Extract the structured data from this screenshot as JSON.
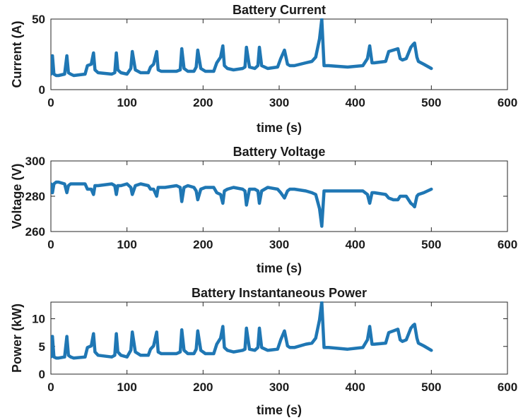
{
  "chart_data": [
    {
      "type": "line",
      "title": "Battery Current",
      "xlabel": "time (s)",
      "ylabel": "Current (A)",
      "xlim": [
        0,
        600
      ],
      "ylim": [
        0,
        50
      ],
      "xticks": [
        "0",
        "100",
        "200",
        "300",
        "400",
        "500",
        "600"
      ],
      "yticks": [
        "0",
        "50"
      ],
      "ytick_values": [
        0,
        50
      ],
      "grid": false,
      "color": "#1f77b4",
      "series": [
        {
          "x": [
            0,
            2,
            4,
            7,
            10,
            18,
            21,
            23,
            26,
            30,
            45,
            48,
            53,
            56,
            58,
            62,
            80,
            84,
            86,
            88,
            92,
            100,
            105,
            107,
            111,
            118,
            128,
            131,
            135,
            139,
            141,
            145,
            150,
            165,
            170,
            172,
            175,
            180,
            188,
            191,
            193,
            197,
            203,
            214,
            218,
            223,
            226,
            228,
            232,
            240,
            252,
            255,
            257,
            261,
            268,
            272,
            274,
            277,
            285,
            298,
            302,
            307,
            311,
            314,
            320,
            335,
            343,
            348,
            353,
            356,
            359,
            365,
            390,
            410,
            416,
            419,
            422,
            425,
            440,
            444,
            450,
            456,
            459,
            462,
            467,
            473,
            476,
            478,
            481,
            483,
            490,
            500
          ],
          "y": [
            11,
            24,
            11,
            10,
            10,
            11,
            24,
            12,
            11,
            10,
            11,
            17,
            18,
            26,
            14,
            12,
            11,
            12,
            26,
            14,
            12,
            11,
            15,
            27,
            14,
            12,
            12,
            16,
            18,
            27,
            14,
            13,
            13,
            13,
            14,
            29,
            15,
            13,
            13,
            16,
            28,
            15,
            13,
            13,
            19,
            23,
            31,
            17,
            15,
            14,
            15,
            16,
            30,
            16,
            15,
            17,
            30,
            17,
            15,
            16,
            22,
            28,
            18,
            17,
            17,
            19,
            20,
            23,
            36,
            50,
            17,
            17,
            16,
            17,
            22,
            31,
            19,
            19,
            20,
            27,
            28,
            29,
            22,
            21,
            22,
            30,
            32,
            33,
            23,
            20,
            18,
            15
          ]
        }
      ]
    },
    {
      "type": "line",
      "title": "Battery Voltage",
      "xlabel": "time (s)",
      "ylabel": "Voltage (V)",
      "xlim": [
        0,
        600
      ],
      "ylim": [
        260,
        300
      ],
      "xticks": [
        "0",
        "100",
        "200",
        "300",
        "400",
        "500",
        "600"
      ],
      "yticks": [
        "260",
        "280",
        "300"
      ],
      "ytick_values": [
        260,
        280,
        300
      ],
      "grid": false,
      "color": "#1f77b4",
      "series": [
        {
          "x": [
            0,
            2,
            4,
            7,
            10,
            18,
            21,
            23,
            26,
            30,
            45,
            48,
            53,
            56,
            58,
            62,
            80,
            84,
            86,
            88,
            92,
            100,
            105,
            107,
            111,
            118,
            128,
            131,
            135,
            139,
            141,
            145,
            150,
            165,
            170,
            172,
            175,
            180,
            188,
            191,
            193,
            197,
            203,
            214,
            218,
            223,
            226,
            228,
            232,
            240,
            252,
            255,
            257,
            261,
            268,
            272,
            274,
            277,
            285,
            298,
            302,
            307,
            311,
            314,
            320,
            335,
            343,
            348,
            353,
            356,
            359,
            365,
            390,
            410,
            416,
            419,
            422,
            425,
            440,
            444,
            450,
            456,
            459,
            462,
            467,
            473,
            476,
            478,
            481,
            483,
            490,
            500
          ],
          "y": [
            287,
            282,
            287,
            288,
            288,
            287,
            282,
            286,
            287,
            287,
            287,
            284,
            284,
            281,
            286,
            286,
            287,
            286,
            281,
            286,
            286,
            287,
            285,
            281,
            286,
            287,
            286,
            284,
            284,
            280,
            285,
            285,
            285,
            286,
            285,
            277,
            285,
            286,
            285,
            283,
            278,
            284,
            285,
            285,
            282,
            281,
            276,
            283,
            284,
            285,
            284,
            283,
            275,
            284,
            284,
            283,
            276,
            283,
            285,
            284,
            282,
            279,
            283,
            284,
            284,
            283,
            282,
            281,
            273,
            263,
            283,
            283,
            283,
            283,
            281,
            276,
            282,
            282,
            281,
            279,
            278,
            278,
            280,
            280,
            280,
            276,
            275,
            274,
            280,
            281,
            282,
            284
          ]
        }
      ]
    },
    {
      "type": "line",
      "title": "Battery Instantaneous Power",
      "xlabel": "time (s)",
      "ylabel": "Power (kW)",
      "xlim": [
        0,
        600
      ],
      "ylim": [
        0,
        13
      ],
      "xticks": [
        "0",
        "100",
        "200",
        "300",
        "400",
        "500",
        "600"
      ],
      "yticks": [
        "0",
        "5",
        "10"
      ],
      "ytick_values": [
        0,
        5,
        10
      ],
      "grid": false,
      "color": "#1f77b4",
      "series": [
        {
          "x": [
            0,
            2,
            4,
            7,
            10,
            18,
            21,
            23,
            26,
            30,
            45,
            48,
            53,
            56,
            58,
            62,
            80,
            84,
            86,
            88,
            92,
            100,
            105,
            107,
            111,
            118,
            128,
            131,
            135,
            139,
            141,
            145,
            150,
            165,
            170,
            172,
            175,
            180,
            188,
            191,
            193,
            197,
            203,
            214,
            218,
            223,
            226,
            228,
            232,
            240,
            252,
            255,
            257,
            261,
            268,
            272,
            274,
            277,
            285,
            298,
            302,
            307,
            311,
            314,
            320,
            335,
            343,
            348,
            353,
            356,
            359,
            365,
            390,
            410,
            416,
            419,
            422,
            425,
            440,
            444,
            450,
            456,
            459,
            462,
            467,
            473,
            476,
            478,
            481,
            483,
            490,
            500
          ],
          "y": [
            3.1,
            6.8,
            3.1,
            2.9,
            2.9,
            3.1,
            6.8,
            3.4,
            3.1,
            2.9,
            3.1,
            4.8,
            5.1,
            7.3,
            4.0,
            3.4,
            3.1,
            3.4,
            7.3,
            4.0,
            3.4,
            3.1,
            4.3,
            7.6,
            4.0,
            3.4,
            3.4,
            4.5,
            5.1,
            7.6,
            4.0,
            3.7,
            3.7,
            3.7,
            4.0,
            8.0,
            4.3,
            3.7,
            3.7,
            4.5,
            7.8,
            4.3,
            3.7,
            3.7,
            5.4,
            6.5,
            8.6,
            4.8,
            4.3,
            4.0,
            4.3,
            4.5,
            8.3,
            4.5,
            4.3,
            4.8,
            8.3,
            4.8,
            4.3,
            4.5,
            6.2,
            7.8,
            5.1,
            4.8,
            4.8,
            5.4,
            5.6,
            6.5,
            9.8,
            13.0,
            4.8,
            4.8,
            4.5,
            4.8,
            6.2,
            8.6,
            5.4,
            5.4,
            5.6,
            7.5,
            7.8,
            8.1,
            6.2,
            5.9,
            6.2,
            8.3,
            8.8,
            9.0,
            6.5,
            5.6,
            5.1,
            4.3
          ]
        }
      ]
    }
  ]
}
